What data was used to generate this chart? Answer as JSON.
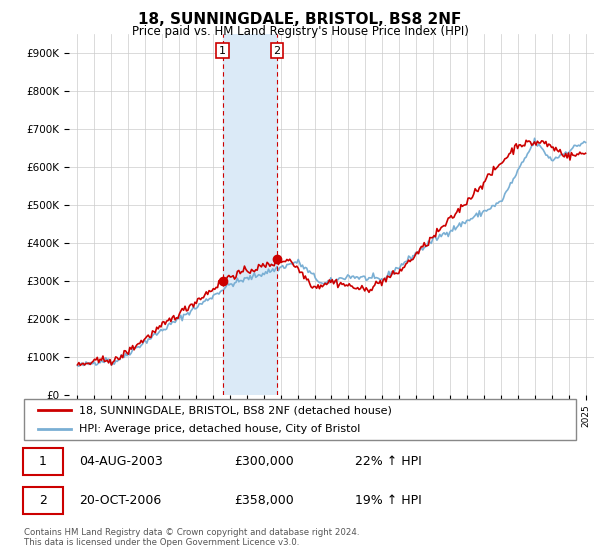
{
  "title": "18, SUNNINGDALE, BRISTOL, BS8 2NF",
  "subtitle": "Price paid vs. HM Land Registry's House Price Index (HPI)",
  "legend_line1": "18, SUNNINGDALE, BRISTOL, BS8 2NF (detached house)",
  "legend_line2": "HPI: Average price, detached house, City of Bristol",
  "transaction1_date": "04-AUG-2003",
  "transaction1_price": "£300,000",
  "transaction1_hpi": "22% ↑ HPI",
  "transaction2_date": "20-OCT-2006",
  "transaction2_price": "£358,000",
  "transaction2_hpi": "19% ↑ HPI",
  "footnote": "Contains HM Land Registry data © Crown copyright and database right 2024.\nThis data is licensed under the Open Government Licence v3.0.",
  "red_color": "#cc0000",
  "blue_color": "#7aafd4",
  "shading_color": "#dbeaf7",
  "background_color": "#ffffff",
  "grid_color": "#cccccc",
  "ylim": [
    0,
    950000
  ],
  "yticks": [
    0,
    100000,
    200000,
    300000,
    400000,
    500000,
    600000,
    700000,
    800000,
    900000
  ],
  "ytick_labels": [
    "£0",
    "£100K",
    "£200K",
    "£300K",
    "£400K",
    "£500K",
    "£600K",
    "£700K",
    "£800K",
    "£900K"
  ],
  "transaction1_x": 2003.58,
  "transaction2_x": 2006.79,
  "transaction1_y": 300000,
  "transaction2_y": 358000,
  "xlim": [
    1994.5,
    2025.5
  ]
}
